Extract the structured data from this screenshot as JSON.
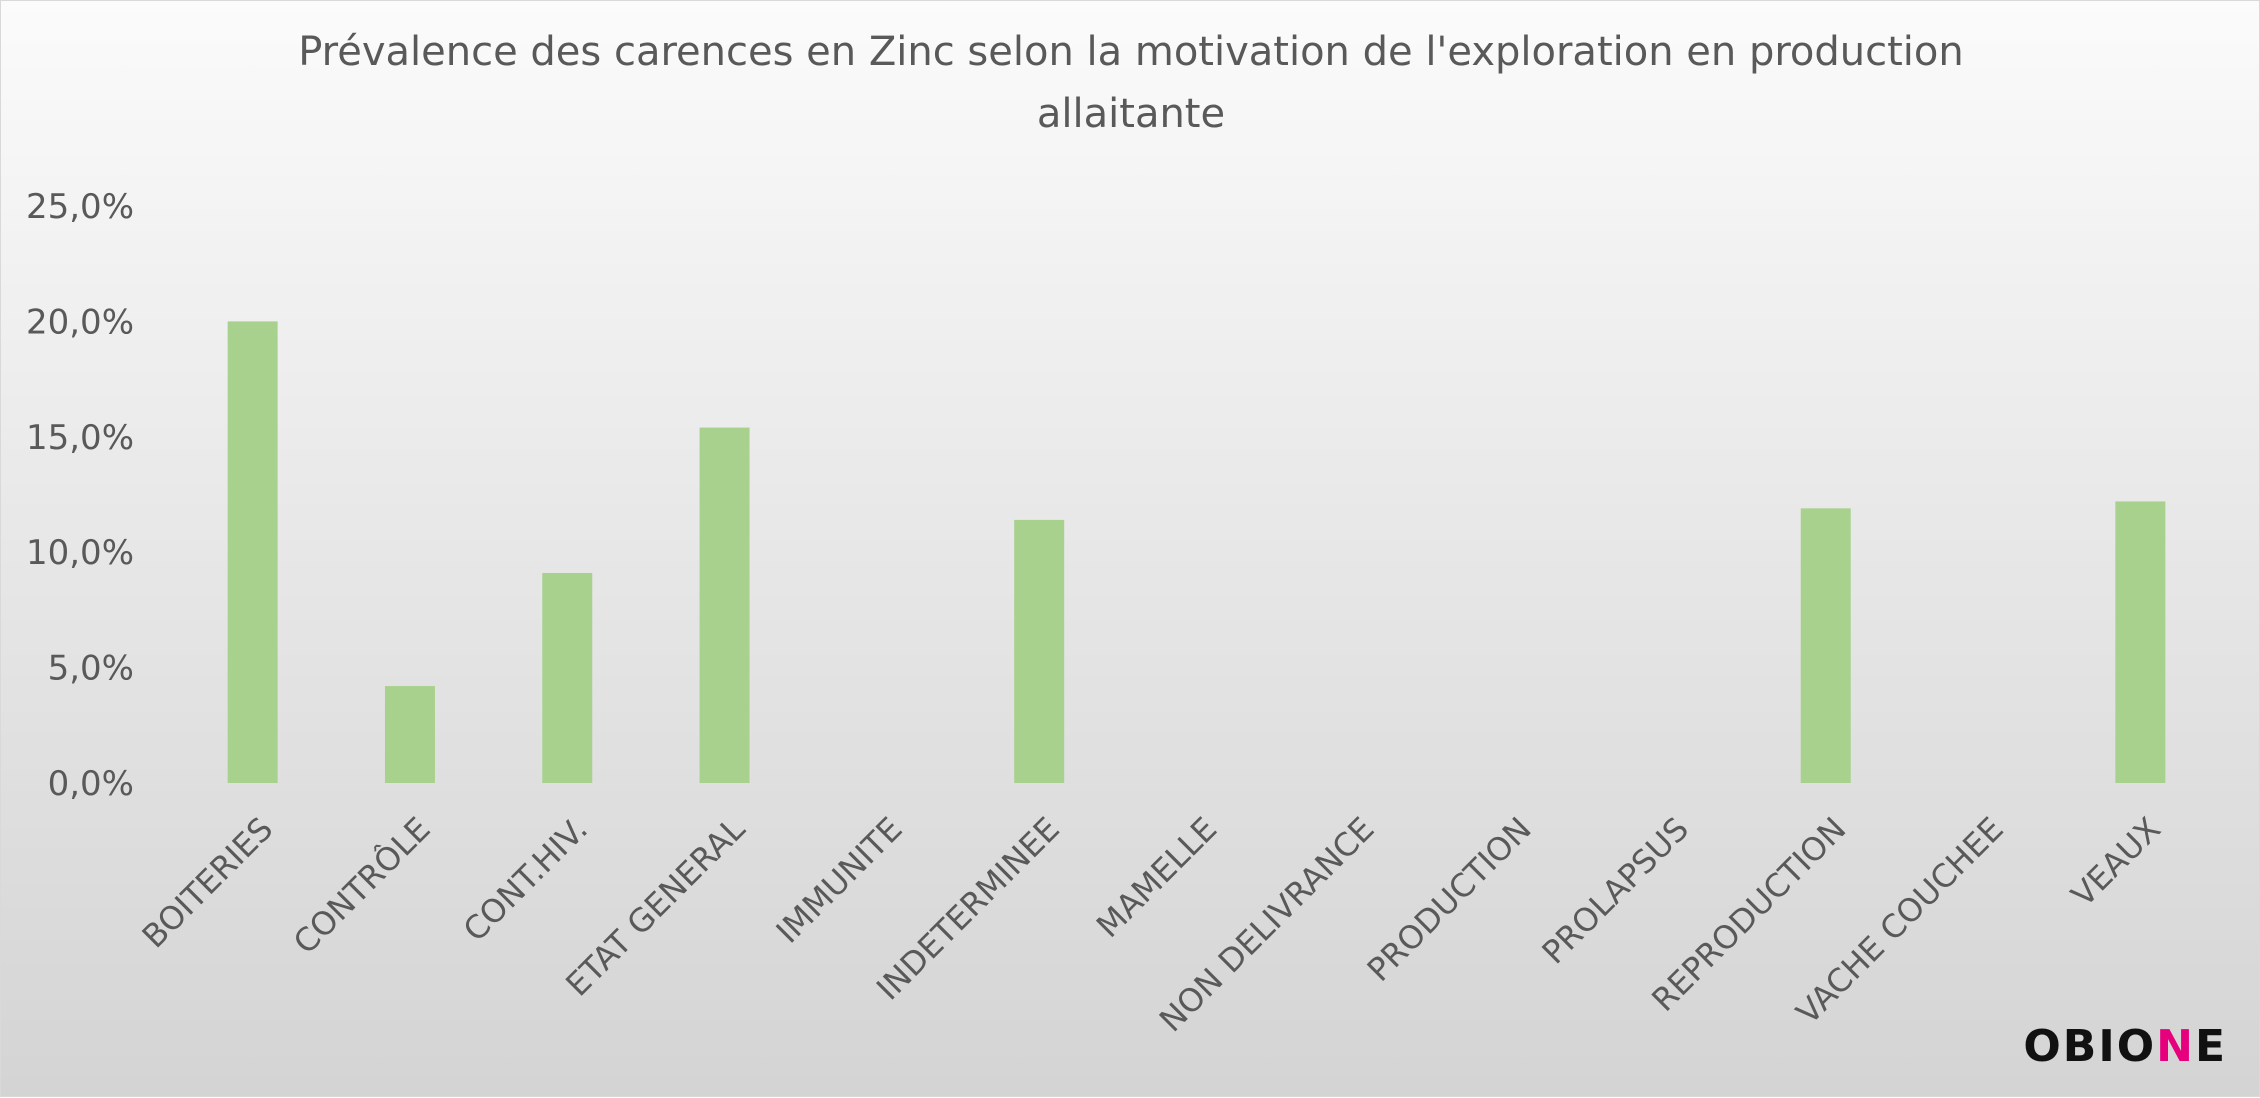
{
  "chart_data": {
    "type": "bar",
    "title_lines": [
      "Prévalence des carences en Zinc selon la motivation de l'exploration en production",
      "allaitante"
    ],
    "xlabel": "",
    "ylabel": "",
    "categories": [
      "BOITERIES",
      "CONTRÔLE",
      "CONT.HIV.",
      "ETAT GENERAL",
      "IMMUNITE",
      "INDETERMINEE",
      "MAMELLE",
      "NON DELIVRANCE",
      "PRODUCTION",
      "PROLAPSUS",
      "REPRODUCTION",
      "VACHE COUCHEE",
      "VEAUX"
    ],
    "values": [
      20.0,
      4.2,
      9.1,
      15.4,
      0.0,
      11.4,
      0.0,
      0.0,
      0.0,
      0.0,
      11.9,
      0.0,
      12.2
    ],
    "ylim": [
      0,
      25
    ],
    "yticks": [
      {
        "value": 0,
        "label": "0,0%"
      },
      {
        "value": 5,
        "label": "5,0%"
      },
      {
        "value": 10,
        "label": "10,0%"
      },
      {
        "value": 15,
        "label": "15,0%"
      },
      {
        "value": 20,
        "label": "20,0%"
      },
      {
        "value": 25,
        "label": "25,0%"
      }
    ],
    "grid": false,
    "legend": "none",
    "bar_color": "#a9d18e",
    "text_color": "#595959"
  },
  "logo": {
    "text_before": "OBIO",
    "text_accent": "N",
    "text_after": "E",
    "accent_color": "#e6007e"
  }
}
